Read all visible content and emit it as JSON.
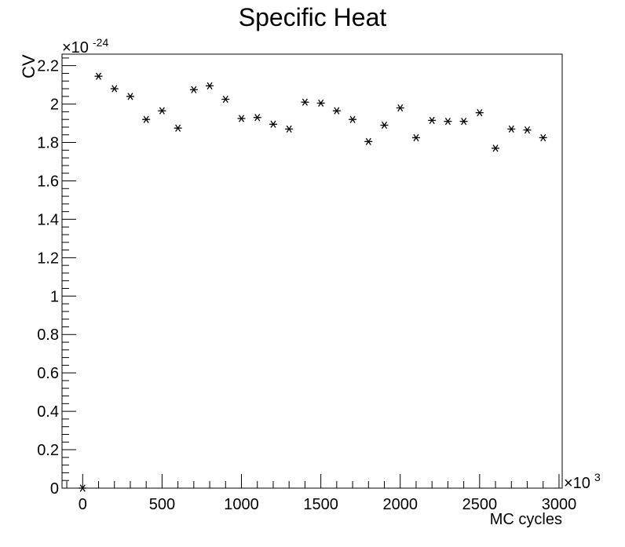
{
  "chart_data": {
    "type": "scatter",
    "title": "Specific Heat",
    "xlabel": "MC cycles",
    "ylabel": "CV",
    "x_multiplier_label": "×10",
    "x_multiplier_exp": "3",
    "y_multiplier_label": "×10",
    "y_multiplier_exp": "-24",
    "xlim": [
      -130,
      3020
    ],
    "ylim": [
      0,
      2.26
    ],
    "x_ticks": [
      {
        "value": 0,
        "label": "0"
      },
      {
        "value": 500,
        "label": "500"
      },
      {
        "value": 1000,
        "label": "1000"
      },
      {
        "value": 1500,
        "label": "1500"
      },
      {
        "value": 2000,
        "label": "2000"
      },
      {
        "value": 2500,
        "label": "2500"
      },
      {
        "value": 3000,
        "label": "3000"
      }
    ],
    "y_ticks": [
      {
        "value": 0,
        "label": "0"
      },
      {
        "value": 0.2,
        "label": "0.2"
      },
      {
        "value": 0.4,
        "label": "0.4"
      },
      {
        "value": 0.6,
        "label": "0.6"
      },
      {
        "value": 0.8,
        "label": "0.8"
      },
      {
        "value": 1.0,
        "label": "1"
      },
      {
        "value": 1.2,
        "label": "1.2"
      },
      {
        "value": 1.4,
        "label": "1.4"
      },
      {
        "value": 1.6,
        "label": "1.6"
      },
      {
        "value": 1.8,
        "label": "1.8"
      },
      {
        "value": 2.0,
        "label": "2"
      },
      {
        "value": 2.2,
        "label": "2.2"
      }
    ],
    "x": [
      0,
      100,
      200,
      300,
      400,
      500,
      600,
      700,
      800,
      900,
      1000,
      1100,
      1200,
      1300,
      1400,
      1500,
      1600,
      1700,
      1800,
      1900,
      2000,
      2100,
      2200,
      2300,
      2400,
      2500,
      2600,
      2700,
      2800,
      2900
    ],
    "y": [
      0.0,
      2.145,
      2.08,
      2.04,
      1.92,
      1.965,
      1.875,
      2.075,
      2.095,
      2.025,
      1.925,
      1.93,
      1.895,
      1.87,
      2.01,
      2.005,
      1.965,
      1.92,
      1.805,
      1.89,
      1.98,
      1.825,
      1.915,
      1.91,
      1.91,
      1.955,
      1.77,
      1.87,
      1.865,
      1.825
    ],
    "marker": "asterisk",
    "marker_color": "#000000",
    "grid": false,
    "legend": "none"
  }
}
